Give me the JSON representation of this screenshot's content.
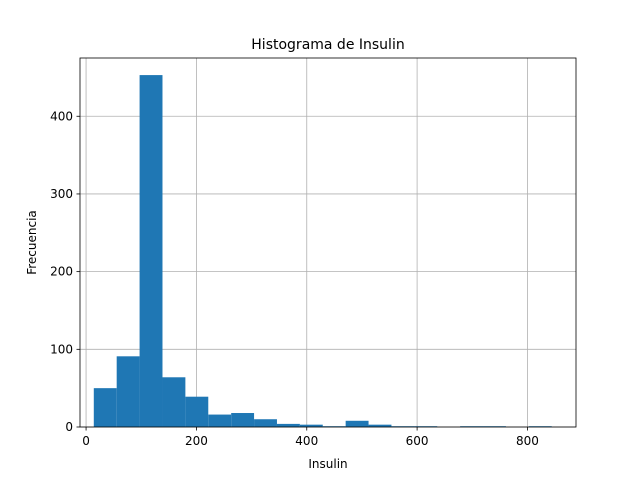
{
  "chart_data": {
    "type": "bar",
    "title": "Histograma de Insulin",
    "xlabel": "Insulin",
    "ylabel": "Frecuencia",
    "xlim": [
      -11,
      888
    ],
    "ylim": [
      0,
      475
    ],
    "xticks": [
      0,
      200,
      400,
      600,
      800
    ],
    "yticks": [
      0,
      100,
      200,
      300,
      400
    ],
    "grid": true,
    "bar_color": "#1f77b4",
    "bins": [
      {
        "x0": 14.0,
        "x1": 55.5,
        "count": 50
      },
      {
        "x0": 55.5,
        "x1": 97.0,
        "count": 91
      },
      {
        "x0": 97.0,
        "x1": 138.5,
        "count": 453
      },
      {
        "x0": 138.5,
        "x1": 180.0,
        "count": 64
      },
      {
        "x0": 180.0,
        "x1": 221.5,
        "count": 39
      },
      {
        "x0": 221.5,
        "x1": 263.0,
        "count": 16
      },
      {
        "x0": 263.0,
        "x1": 304.5,
        "count": 18
      },
      {
        "x0": 304.5,
        "x1": 346.0,
        "count": 10
      },
      {
        "x0": 346.0,
        "x1": 387.5,
        "count": 4
      },
      {
        "x0": 387.5,
        "x1": 429.0,
        "count": 3
      },
      {
        "x0": 429.0,
        "x1": 470.5,
        "count": 1
      },
      {
        "x0": 470.5,
        "x1": 512.0,
        "count": 8
      },
      {
        "x0": 512.0,
        "x1": 553.5,
        "count": 3
      },
      {
        "x0": 553.5,
        "x1": 595.0,
        "count": 1
      },
      {
        "x0": 595.0,
        "x1": 636.5,
        "count": 1
      },
      {
        "x0": 636.5,
        "x1": 678.0,
        "count": 0
      },
      {
        "x0": 678.0,
        "x1": 719.5,
        "count": 1
      },
      {
        "x0": 719.5,
        "x1": 761.0,
        "count": 1
      },
      {
        "x0": 761.0,
        "x1": 802.5,
        "count": 0
      },
      {
        "x0": 802.5,
        "x1": 844.0,
        "count": 1
      }
    ]
  }
}
